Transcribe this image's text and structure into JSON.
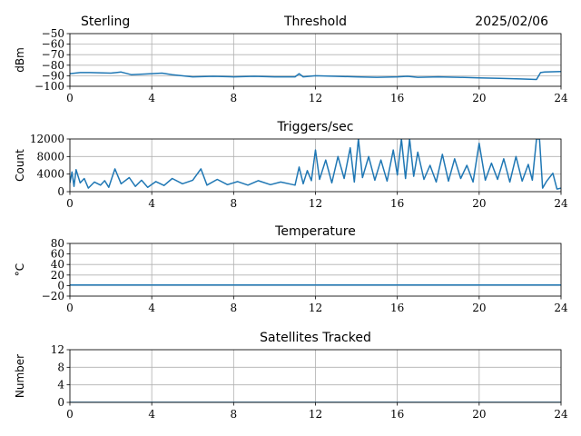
{
  "header": {
    "station": "Sterling",
    "date": "2025/02/06"
  },
  "chart_data": [
    {
      "type": "line",
      "title": "Threshold",
      "ylabel": "dBm",
      "xlim": [
        0,
        24
      ],
      "ylim": [
        -100,
        -50
      ],
      "xticks": [
        "0",
        "4",
        "8",
        "12",
        "16",
        "20",
        "24"
      ],
      "yticks": [
        "−50",
        "−60",
        "−70",
        "−80",
        "−90",
        "−100"
      ],
      "ytick_values": [
        -50,
        -60,
        -70,
        -80,
        -90,
        -100
      ],
      "color": "#1f77b4",
      "grid": true,
      "series": [
        {
          "x": [
            0,
            0.5,
            1,
            2,
            2.5,
            3,
            4,
            4.5,
            5,
            6,
            7,
            8,
            9,
            10,
            11,
            11.2,
            11.4,
            12,
            13,
            14,
            15,
            16,
            16.5,
            17,
            18,
            19,
            20,
            21,
            22,
            22.8,
            23,
            23.2,
            24
          ],
          "y": [
            -88,
            -87,
            -87,
            -87.5,
            -86.5,
            -89,
            -88,
            -87.5,
            -89,
            -91,
            -90.5,
            -91,
            -90.5,
            -91,
            -91,
            -88,
            -91,
            -90,
            -90.5,
            -91,
            -91.5,
            -91,
            -90.5,
            -91.5,
            -91,
            -91.5,
            -92,
            -92.5,
            -93,
            -93.5,
            -87,
            -86.5,
            -86
          ]
        }
      ]
    },
    {
      "type": "line",
      "title": "Triggers/sec",
      "ylabel": "Count",
      "xlim": [
        0,
        24
      ],
      "ylim": [
        0,
        12000
      ],
      "xticks": [
        "0",
        "4",
        "8",
        "12",
        "16",
        "20",
        "24"
      ],
      "yticks": [
        "12000",
        "8000",
        "4000",
        "0"
      ],
      "ytick_values": [
        12000,
        8000,
        4000,
        0
      ],
      "color": "#1f77b4",
      "grid": true,
      "series": [
        {
          "x": [
            0,
            0.1,
            0.2,
            0.3,
            0.5,
            0.7,
            0.9,
            1.2,
            1.5,
            1.7,
            1.9,
            2.2,
            2.5,
            2.9,
            3.2,
            3.5,
            3.8,
            4.2,
            4.6,
            5.0,
            5.5,
            6.0,
            6.4,
            6.7,
            7.2,
            7.7,
            8.2,
            8.7,
            9.2,
            9.8,
            10.3,
            10.8,
            11.0,
            11.2,
            11.4,
            11.6,
            11.8,
            12.0,
            12.2,
            12.5,
            12.8,
            13.1,
            13.4,
            13.7,
            13.9,
            14.1,
            14.3,
            14.6,
            14.9,
            15.2,
            15.5,
            15.8,
            16.0,
            16.2,
            16.4,
            16.6,
            16.8,
            17.0,
            17.3,
            17.6,
            17.9,
            18.2,
            18.5,
            18.8,
            19.1,
            19.4,
            19.7,
            20.0,
            20.3,
            20.6,
            20.9,
            21.2,
            21.5,
            21.8,
            22.1,
            22.4,
            22.6,
            22.8,
            22.95,
            23.1,
            23.3,
            23.6,
            23.8,
            24
          ],
          "y": [
            2000,
            4500,
            1200,
            5000,
            2000,
            3000,
            800,
            2200,
            1500,
            2500,
            1000,
            5200,
            1800,
            3200,
            1200,
            2600,
            1000,
            2300,
            1400,
            3000,
            1800,
            2600,
            5200,
            1500,
            2800,
            1600,
            2300,
            1500,
            2500,
            1600,
            2200,
            1700,
            1500,
            5600,
            1800,
            4800,
            2500,
            9500,
            2800,
            7200,
            2000,
            8000,
            3000,
            10000,
            2200,
            12000,
            3200,
            8000,
            2600,
            7200,
            2400,
            9500,
            3800,
            12000,
            3000,
            12000,
            3500,
            9000,
            2800,
            6000,
            2200,
            8500,
            2400,
            7500,
            3000,
            6000,
            2200,
            11000,
            2600,
            6500,
            2800,
            7500,
            2200,
            8000,
            2400,
            6200,
            2600,
            12000,
            12000,
            800,
            2400,
            4200,
            600,
            800
          ]
        }
      ]
    },
    {
      "type": "line",
      "title": "Temperature",
      "ylabel": "°C",
      "xlim": [
        0,
        24
      ],
      "ylim": [
        -20,
        80
      ],
      "xticks": [
        "0",
        "4",
        "8",
        "12",
        "16",
        "20",
        "24"
      ],
      "yticks": [
        "80",
        "60",
        "40",
        "20",
        "0",
        "−20"
      ],
      "ytick_values": [
        80,
        60,
        40,
        20,
        0,
        -20
      ],
      "color": "#1f77b4",
      "grid": true,
      "series": [
        {
          "x": [
            0,
            24
          ],
          "y": [
            1,
            1
          ]
        }
      ]
    },
    {
      "type": "line",
      "title": "Satellites Tracked",
      "ylabel": "Number",
      "xlim": [
        0,
        24
      ],
      "ylim": [
        0,
        12
      ],
      "xticks": [
        "0",
        "4",
        "8",
        "12",
        "16",
        "20",
        "24"
      ],
      "yticks": [
        "12",
        "8",
        "4",
        "0"
      ],
      "ytick_values": [
        12,
        8,
        4,
        0
      ],
      "color": "#1f77b4",
      "grid": true,
      "series": [
        {
          "x": [
            0,
            24
          ],
          "y": [
            0,
            0
          ]
        }
      ]
    }
  ]
}
